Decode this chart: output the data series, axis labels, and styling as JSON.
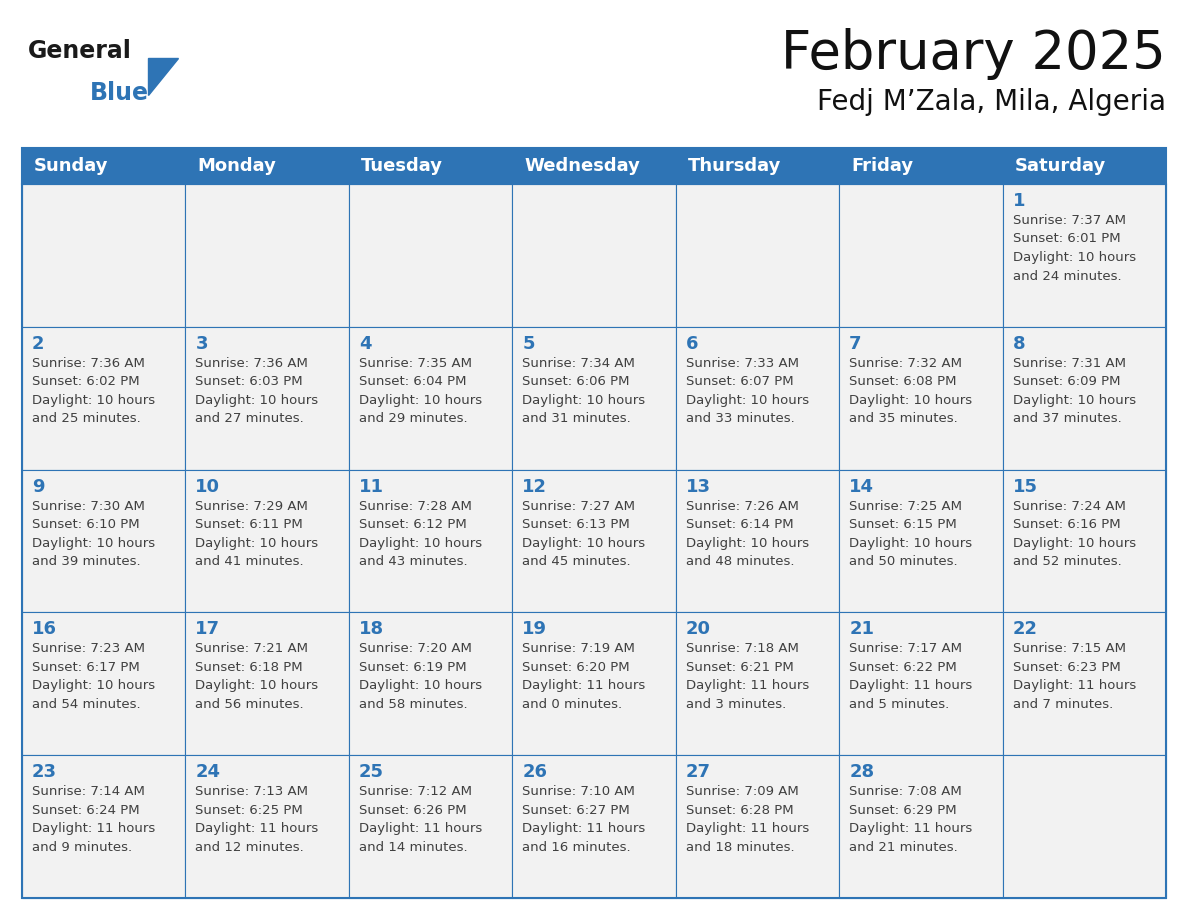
{
  "title": "February 2025",
  "subtitle": "Fedj M’Zala, Mila, Algeria",
  "header_bg": "#2E74B5",
  "header_text_color": "#FFFFFF",
  "cell_border_color": "#2E74B5",
  "cell_bg_color": "#F2F2F2",
  "day_number_color": "#2E74B5",
  "info_text_color": "#404040",
  "background_color": "#FFFFFF",
  "days_of_week": [
    "Sunday",
    "Monday",
    "Tuesday",
    "Wednesday",
    "Thursday",
    "Friday",
    "Saturday"
  ],
  "weeks": [
    [
      {
        "day": "",
        "info": ""
      },
      {
        "day": "",
        "info": ""
      },
      {
        "day": "",
        "info": ""
      },
      {
        "day": "",
        "info": ""
      },
      {
        "day": "",
        "info": ""
      },
      {
        "day": "",
        "info": ""
      },
      {
        "day": "1",
        "info": "Sunrise: 7:37 AM\nSunset: 6:01 PM\nDaylight: 10 hours\nand 24 minutes."
      }
    ],
    [
      {
        "day": "2",
        "info": "Sunrise: 7:36 AM\nSunset: 6:02 PM\nDaylight: 10 hours\nand 25 minutes."
      },
      {
        "day": "3",
        "info": "Sunrise: 7:36 AM\nSunset: 6:03 PM\nDaylight: 10 hours\nand 27 minutes."
      },
      {
        "day": "4",
        "info": "Sunrise: 7:35 AM\nSunset: 6:04 PM\nDaylight: 10 hours\nand 29 minutes."
      },
      {
        "day": "5",
        "info": "Sunrise: 7:34 AM\nSunset: 6:06 PM\nDaylight: 10 hours\nand 31 minutes."
      },
      {
        "day": "6",
        "info": "Sunrise: 7:33 AM\nSunset: 6:07 PM\nDaylight: 10 hours\nand 33 minutes."
      },
      {
        "day": "7",
        "info": "Sunrise: 7:32 AM\nSunset: 6:08 PM\nDaylight: 10 hours\nand 35 minutes."
      },
      {
        "day": "8",
        "info": "Sunrise: 7:31 AM\nSunset: 6:09 PM\nDaylight: 10 hours\nand 37 minutes."
      }
    ],
    [
      {
        "day": "9",
        "info": "Sunrise: 7:30 AM\nSunset: 6:10 PM\nDaylight: 10 hours\nand 39 minutes."
      },
      {
        "day": "10",
        "info": "Sunrise: 7:29 AM\nSunset: 6:11 PM\nDaylight: 10 hours\nand 41 minutes."
      },
      {
        "day": "11",
        "info": "Sunrise: 7:28 AM\nSunset: 6:12 PM\nDaylight: 10 hours\nand 43 minutes."
      },
      {
        "day": "12",
        "info": "Sunrise: 7:27 AM\nSunset: 6:13 PM\nDaylight: 10 hours\nand 45 minutes."
      },
      {
        "day": "13",
        "info": "Sunrise: 7:26 AM\nSunset: 6:14 PM\nDaylight: 10 hours\nand 48 minutes."
      },
      {
        "day": "14",
        "info": "Sunrise: 7:25 AM\nSunset: 6:15 PM\nDaylight: 10 hours\nand 50 minutes."
      },
      {
        "day": "15",
        "info": "Sunrise: 7:24 AM\nSunset: 6:16 PM\nDaylight: 10 hours\nand 52 minutes."
      }
    ],
    [
      {
        "day": "16",
        "info": "Sunrise: 7:23 AM\nSunset: 6:17 PM\nDaylight: 10 hours\nand 54 minutes."
      },
      {
        "day": "17",
        "info": "Sunrise: 7:21 AM\nSunset: 6:18 PM\nDaylight: 10 hours\nand 56 minutes."
      },
      {
        "day": "18",
        "info": "Sunrise: 7:20 AM\nSunset: 6:19 PM\nDaylight: 10 hours\nand 58 minutes."
      },
      {
        "day": "19",
        "info": "Sunrise: 7:19 AM\nSunset: 6:20 PM\nDaylight: 11 hours\nand 0 minutes."
      },
      {
        "day": "20",
        "info": "Sunrise: 7:18 AM\nSunset: 6:21 PM\nDaylight: 11 hours\nand 3 minutes."
      },
      {
        "day": "21",
        "info": "Sunrise: 7:17 AM\nSunset: 6:22 PM\nDaylight: 11 hours\nand 5 minutes."
      },
      {
        "day": "22",
        "info": "Sunrise: 7:15 AM\nSunset: 6:23 PM\nDaylight: 11 hours\nand 7 minutes."
      }
    ],
    [
      {
        "day": "23",
        "info": "Sunrise: 7:14 AM\nSunset: 6:24 PM\nDaylight: 11 hours\nand 9 minutes."
      },
      {
        "day": "24",
        "info": "Sunrise: 7:13 AM\nSunset: 6:25 PM\nDaylight: 11 hours\nand 12 minutes."
      },
      {
        "day": "25",
        "info": "Sunrise: 7:12 AM\nSunset: 6:26 PM\nDaylight: 11 hours\nand 14 minutes."
      },
      {
        "day": "26",
        "info": "Sunrise: 7:10 AM\nSunset: 6:27 PM\nDaylight: 11 hours\nand 16 minutes."
      },
      {
        "day": "27",
        "info": "Sunrise: 7:09 AM\nSunset: 6:28 PM\nDaylight: 11 hours\nand 18 minutes."
      },
      {
        "day": "28",
        "info": "Sunrise: 7:08 AM\nSunset: 6:29 PM\nDaylight: 11 hours\nand 21 minutes."
      },
      {
        "day": "",
        "info": ""
      }
    ]
  ],
  "logo_general_color": "#1a1a1a",
  "logo_blue_color": "#2E74B5",
  "title_fontsize": 38,
  "subtitle_fontsize": 20,
  "header_fontsize": 13,
  "day_number_fontsize": 13,
  "info_fontsize": 9.5
}
